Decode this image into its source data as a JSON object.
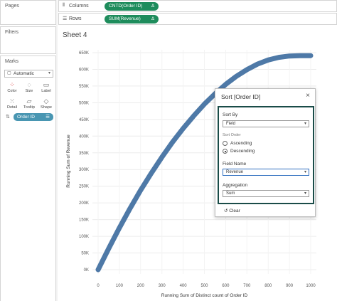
{
  "pages": {
    "title": "Pages"
  },
  "filters": {
    "title": "Filters"
  },
  "marks": {
    "title": "Marks",
    "type": "Automatic",
    "buttons": [
      {
        "label": "Color",
        "icon": "color-icon"
      },
      {
        "label": "Size",
        "icon": "size-icon"
      },
      {
        "label": "Label",
        "icon": "label-icon"
      },
      {
        "label": "Detail",
        "icon": "detail-icon"
      },
      {
        "label": "Tooltip",
        "icon": "tooltip-icon"
      },
      {
        "label": "Shape",
        "icon": "shape-icon"
      }
    ],
    "field_pill": "Order ID"
  },
  "shelves": {
    "columns_label": "Columns",
    "columns_pill": "CNTD(Order ID)",
    "rows_label": "Rows",
    "rows_pill": "SUM(Revenue)",
    "delta": "Δ"
  },
  "sheet": {
    "title": "Sheet 4"
  },
  "chart_data": {
    "type": "line",
    "xlabel": "Running Sum of Distinct count of Order ID",
    "ylabel": "Running Sum of Revenue",
    "x_ticks": [
      "0",
      "100",
      "200",
      "300",
      "400",
      "500",
      "600",
      "700",
      "800",
      "900",
      "1000"
    ],
    "y_ticks": [
      "0K",
      "50K",
      "100K",
      "150K",
      "200K",
      "250K",
      "300K",
      "350K",
      "400K",
      "450K",
      "500K",
      "550K",
      "600K",
      "650K"
    ],
    "xlim": [
      0,
      1000
    ],
    "ylim": [
      0,
      650
    ],
    "y_unit": "K",
    "color": "#4e79a7",
    "x": [
      0,
      50,
      100,
      150,
      200,
      250,
      300,
      350,
      400,
      450,
      500,
      550,
      600,
      650,
      700,
      750,
      800,
      850,
      900,
      950,
      1000
    ],
    "y": [
      0,
      64,
      125,
      183,
      238,
      289,
      337,
      382,
      423,
      461,
      496,
      527,
      555,
      579,
      599,
      616,
      628,
      636,
      640,
      641,
      641
    ]
  },
  "sort_dialog": {
    "title": "Sort [Order ID]",
    "close": "×",
    "sort_by_label": "Sort By",
    "sort_by_value": "Field",
    "sort_order_label": "Sort Order",
    "ascending": "Ascending",
    "descending": "Descending",
    "field_name_label": "Field Name",
    "field_name_value": "Revenue",
    "aggregation_label": "Aggregation",
    "aggregation_value": "Sum",
    "clear": "Clear"
  }
}
